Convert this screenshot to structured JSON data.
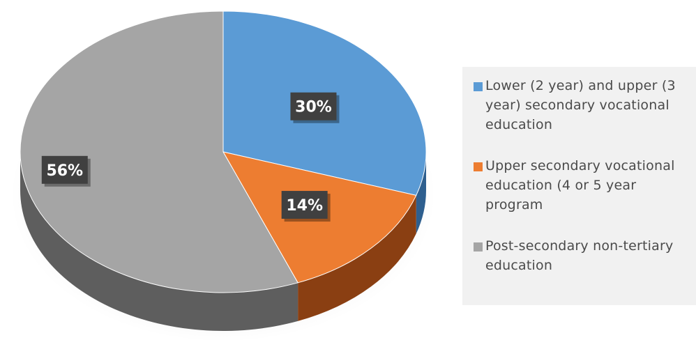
{
  "chart_data": {
    "type": "pie",
    "style": "3d",
    "slices": [
      {
        "label": "Lower (2 year) and upper (3 year) secondary vocational education",
        "value": 30,
        "data_label": "30%",
        "color": "#5b9bd5",
        "side_color": "#2e5f8f"
      },
      {
        "label": "Upper secondary vocational education (4 or 5 year program",
        "value": 14,
        "data_label": "14%",
        "color": "#ed7d31",
        "side_color": "#8a3f12"
      },
      {
        "label": "Post-secondary non-tertiary education",
        "value": 56,
        "data_label": "56%",
        "color": "#a5a5a5",
        "side_color": "#5e5e5e"
      }
    ],
    "legend_position": "right",
    "data_label_bg": "#404040",
    "data_label_color": "#ffffff"
  }
}
